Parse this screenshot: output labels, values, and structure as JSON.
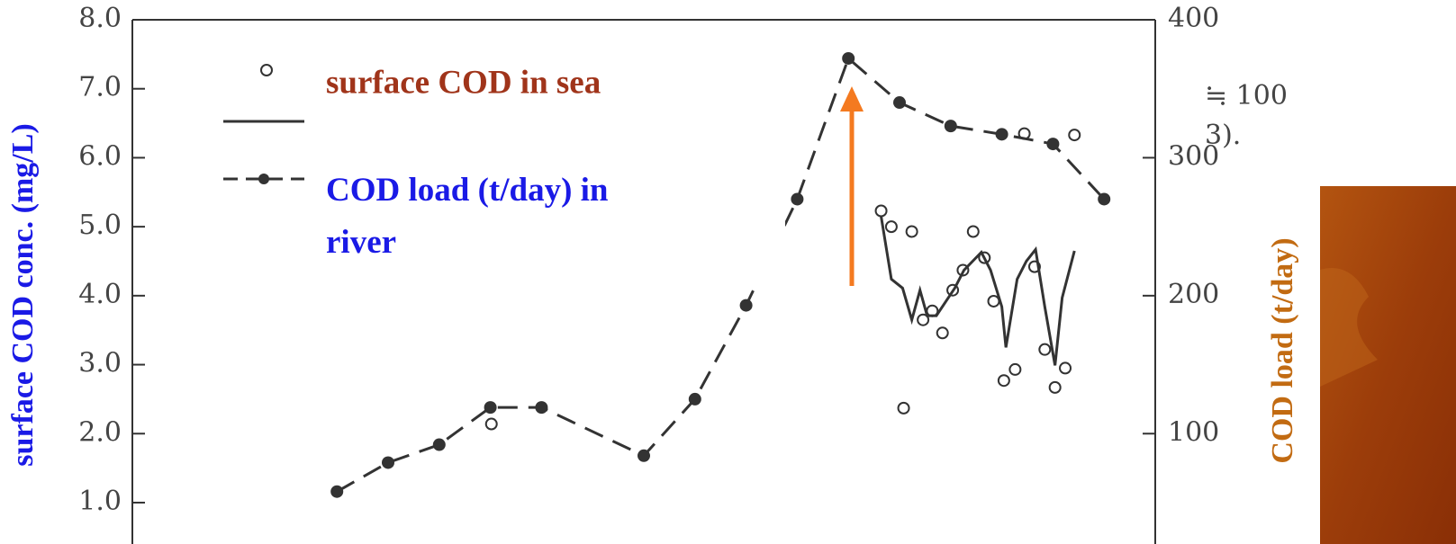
{
  "chart_data": {
    "type": "line",
    "ylabel": "surface COD conc. (mg/L)",
    "y2label": "COD load (t/day)",
    "xlim": [
      0,
      100
    ],
    "ylim": [
      0.4,
      8.0
    ],
    "yticks": [
      {
        "value": 8,
        "label": "8.0"
      },
      {
        "value": 7,
        "label": "7.0"
      },
      {
        "value": 6,
        "label": "6.0"
      },
      {
        "value": 5,
        "label": "5.0"
      },
      {
        "value": 4,
        "label": "4.0"
      },
      {
        "value": 3,
        "label": "3.0"
      },
      {
        "value": 2,
        "label": "2.0"
      },
      {
        "value": 1,
        "label": "1.0"
      }
    ],
    "y2lim": [
      20,
      400
    ],
    "y2ticks": [
      400,
      300,
      200,
      100
    ],
    "series": [
      {
        "name": "surface COD in sea",
        "style": "circles",
        "color": "#333333",
        "x": [
          35.1,
          73.2,
          74.2,
          75.4,
          76.2,
          77.3,
          78.2,
          79.2,
          80.2,
          81.2,
          82.2,
          83.3,
          84.2,
          85.2,
          86.3,
          87.2,
          88.2,
          89.2,
          90.2,
          91.2,
          92.1
        ],
        "values": [
          2.14,
          5.23,
          5.0,
          2.37,
          4.93,
          3.65,
          3.78,
          3.46,
          4.08,
          4.37,
          4.93,
          4.55,
          3.92,
          2.77,
          2.93,
          6.35,
          4.42,
          3.22,
          2.67,
          2.95,
          6.33
        ]
      },
      {
        "style": "solid",
        "color": "#333333",
        "x": [
          73.2,
          74.2,
          75.3,
          76.2,
          77.0,
          77.7,
          78.6,
          80.4,
          81.3,
          83.0,
          83.9,
          85.0,
          85.4,
          86.5,
          87.4,
          88.3,
          89.2,
          90.2,
          90.9,
          92.1
        ],
        "values": [
          5.15,
          4.24,
          4.11,
          3.65,
          4.08,
          3.71,
          3.71,
          4.11,
          4.37,
          4.63,
          4.37,
          3.84,
          3.25,
          4.24,
          4.5,
          4.67,
          3.84,
          2.99,
          3.97,
          4.65
        ]
      },
      {
        "name": "COD load (t/day) in river",
        "style": "dashed",
        "axis": "y2",
        "color": "#333333",
        "x": [
          20,
          25,
          30,
          35,
          40,
          50,
          55,
          60,
          65,
          70,
          75,
          80,
          85,
          90,
          95
        ],
        "values": [
          58,
          79,
          92,
          119,
          119,
          84,
          125,
          193,
          270,
          372,
          340,
          323,
          317,
          310,
          270
        ]
      }
    ],
    "annotations": [
      "≒ 100",
      "3)."
    ]
  }
}
